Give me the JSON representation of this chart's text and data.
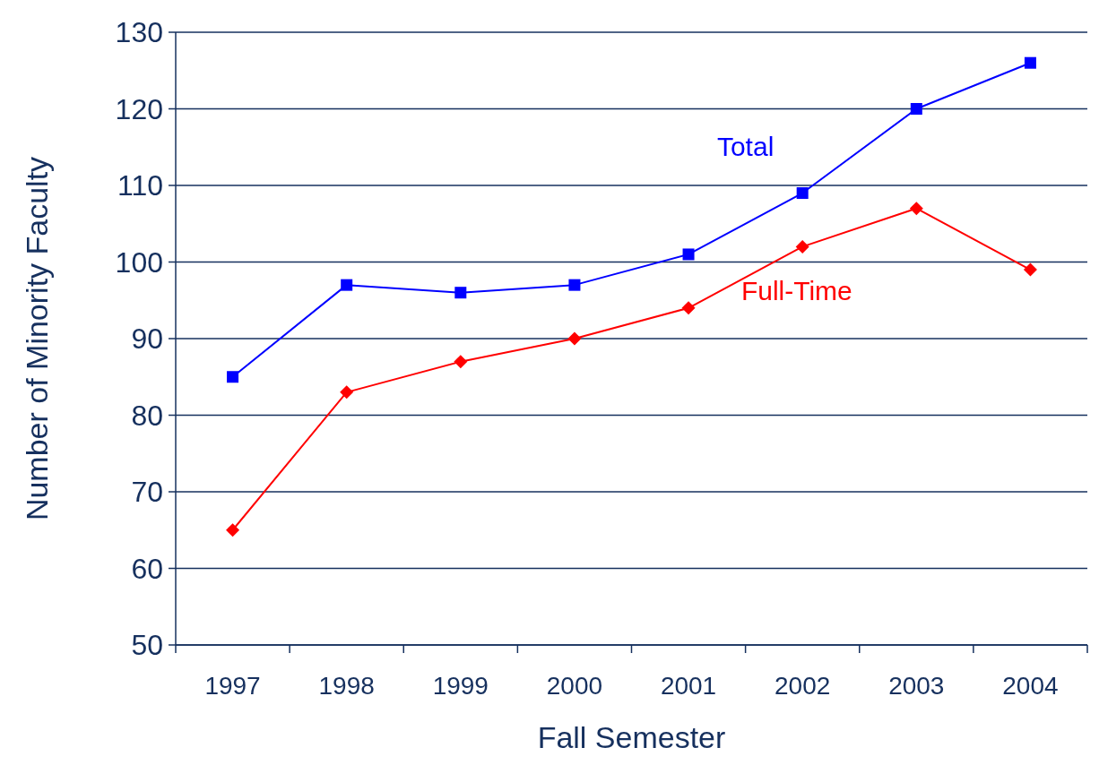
{
  "chart_data": {
    "type": "line",
    "xlabel": "Fall Semester",
    "ylabel": "Number of Minority Faculty",
    "categories": [
      "1997",
      "1998",
      "1999",
      "2000",
      "2001",
      "2002",
      "2003",
      "2004"
    ],
    "series": [
      {
        "name": "Total",
        "color": "#0000ff",
        "marker": "square",
        "values": [
          85,
          97,
          96,
          97,
          101,
          109,
          120,
          126
        ]
      },
      {
        "name": "Full-Time",
        "color": "#ff0000",
        "marker": "diamond",
        "values": [
          65,
          83,
          87,
          90,
          94,
          102,
          107,
          99
        ]
      }
    ],
    "ylim": [
      50,
      130
    ],
    "yticks": [
      50,
      60,
      70,
      80,
      90,
      100,
      110,
      120,
      130
    ],
    "grid": "y",
    "legend": false
  }
}
